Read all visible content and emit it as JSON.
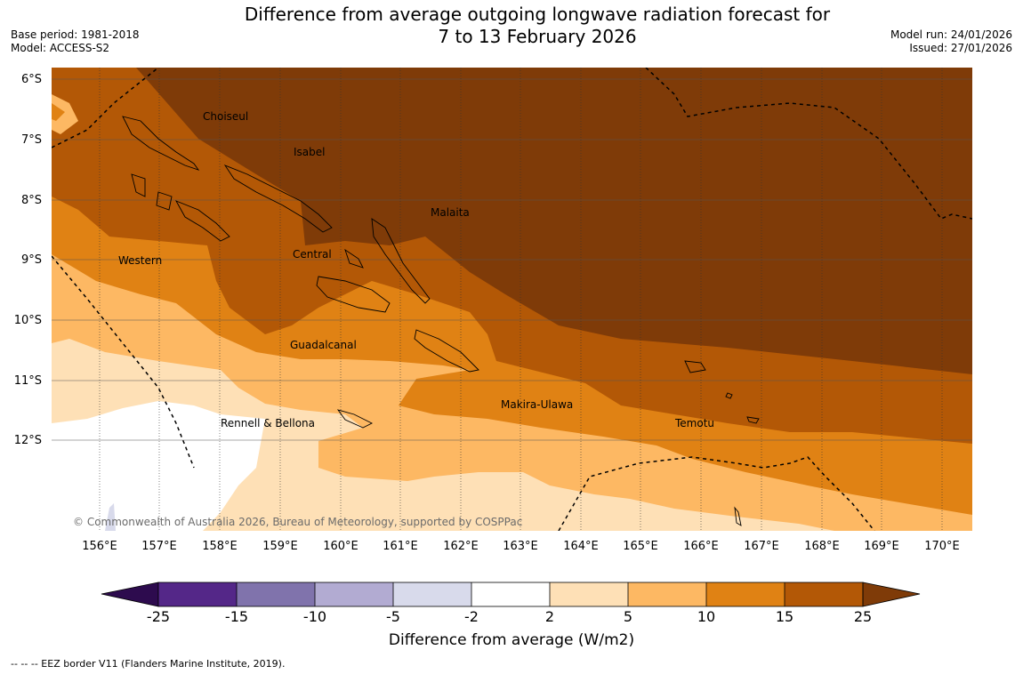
{
  "header": {
    "title_line1": "Difference from average outgoing longwave radiation forecast for",
    "title_line2": "7 to 13 February 2026",
    "base_period": "Base period: 1981-2018",
    "model": "Model: ACCESS-S2",
    "model_run": "Model run: 24/01/2026",
    "issued": "Issued: 27/01/2026"
  },
  "map": {
    "latitudes": [
      "6°S",
      "7°S",
      "8°S",
      "9°S",
      "10°S",
      "11°S",
      "12°S"
    ],
    "longitudes": [
      "156°E",
      "157°E",
      "158°E",
      "159°E",
      "160°E",
      "161°E",
      "162°E",
      "163°E",
      "164°E",
      "165°E",
      "166°E",
      "167°E",
      "168°E",
      "169°E",
      "170°E"
    ],
    "places": {
      "choiseul": "Choiseul",
      "isabel": "Isabel",
      "malaita": "Malaita",
      "western": "Western",
      "central": "Central",
      "guadalcanal": "Guadalcanal",
      "makira": "Makira-Ulawa",
      "rennell": "Rennell & Bellona",
      "temotu": "Temotu"
    },
    "copyright": "© Commonwealth of Australia 2026, Bureau of Meteorology, supported by COSPPac"
  },
  "legend": {
    "ticks": [
      "-25",
      "-15",
      "-10",
      "-5",
      "-2",
      "2",
      "5",
      "10",
      "15",
      "25"
    ],
    "colors": {
      "lt_neg25": "#2d0b4e",
      "neg25_neg15": "#542788",
      "neg15_neg10": "#8073ac",
      "neg10_neg5": "#b2abd2",
      "neg5_neg2": "#d8daeb",
      "neg2_2": "#ffffff",
      "p2_5": "#fee0b6",
      "p5_10": "#fdb863",
      "p10_15": "#e08214",
      "p15_25": "#b35806",
      "gt25": "#7f3b08"
    },
    "label": "Difference from average (W/m2)"
  },
  "footer": {
    "eez_note": "--  --  -- EEZ border V11 (Flanders Marine Institute, 2019)."
  }
}
